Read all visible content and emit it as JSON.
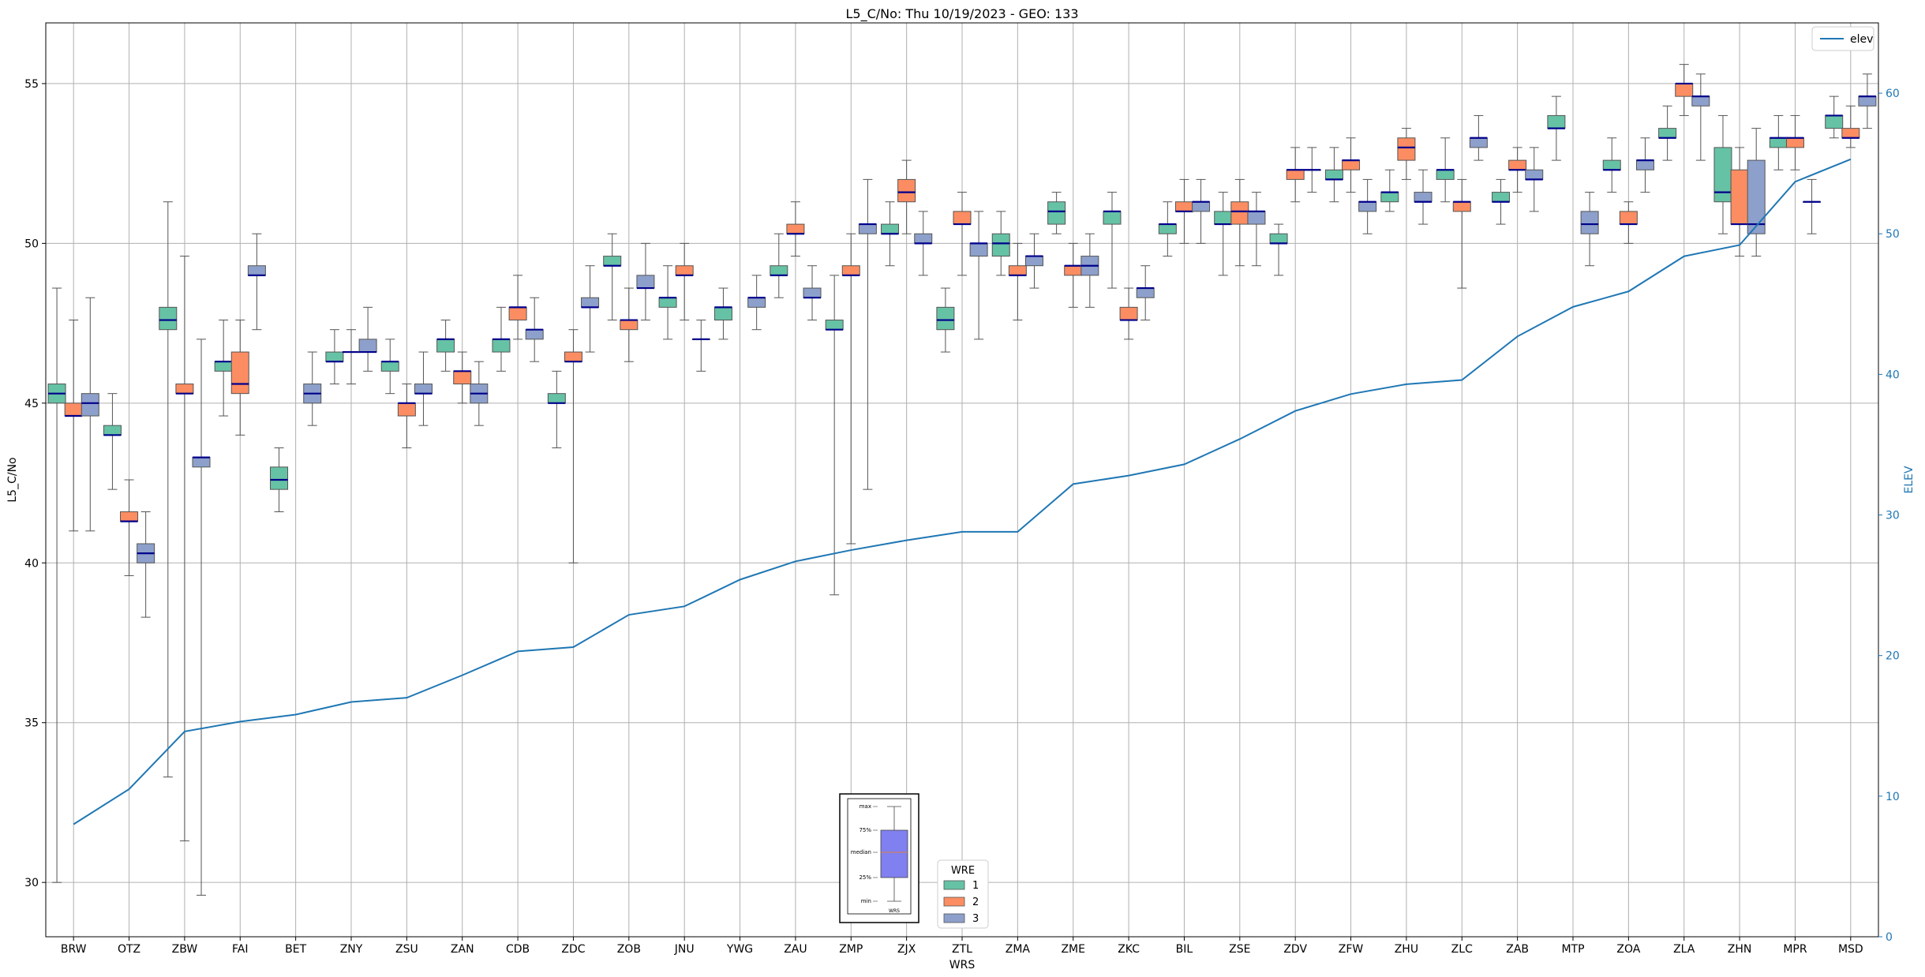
{
  "chart_data": {
    "type": "box",
    "title": "L5_C/No: Thu 10/19/2023 - GEO: 133",
    "xlabel": "WRS",
    "ylabel": "L5_C/No",
    "y2label": "ELEV",
    "ylim": [
      28.3,
      56.9
    ],
    "y2lim": [
      0,
      65
    ],
    "yticks": [
      30,
      35,
      40,
      45,
      50,
      55
    ],
    "y2ticks": [
      0,
      10,
      20,
      30,
      40,
      50,
      60
    ],
    "grid": true,
    "legend_position": "top-right",
    "categories": [
      "BRW",
      "OTZ",
      "ZBW",
      "FAI",
      "BET",
      "ZNY",
      "ZSU",
      "ZAN",
      "CDB",
      "ZDC",
      "ZOB",
      "JNU",
      "YWG",
      "ZAU",
      "ZMP",
      "ZJX",
      "ZTL",
      "ZMA",
      "ZME",
      "ZKC",
      "BIL",
      "ZSE",
      "ZDV",
      "ZFW",
      "ZHU",
      "ZLC",
      "ZAB",
      "MTP",
      "ZOA",
      "ZLA",
      "ZHN",
      "MPR",
      "MSD"
    ],
    "wre_legend": {
      "title": "WRE",
      "items": [
        {
          "label": "1",
          "color": "#66c2a5"
        },
        {
          "label": "2",
          "color": "#fc8d62"
        },
        {
          "label": "3",
          "color": "#8da0cb"
        }
      ]
    },
    "elev_legend_label": "elev",
    "elev_color": "#1f77b4",
    "median_color": "#00008b",
    "inset_key": {
      "labels": [
        "max",
        "75%",
        "median",
        "25%",
        "min"
      ],
      "xlabel": "WRS"
    },
    "boxes": [
      {
        "cat": "BRW",
        "wre": 1,
        "min": 30.0,
        "q1": 45.0,
        "med": 45.3,
        "q3": 45.6,
        "max": 48.6
      },
      {
        "cat": "BRW",
        "wre": 2,
        "min": 41.0,
        "q1": 44.6,
        "med": 44.6,
        "q3": 45.0,
        "max": 47.6
      },
      {
        "cat": "BRW",
        "wre": 3,
        "min": 41.0,
        "q1": 44.6,
        "med": 45.0,
        "q3": 45.3,
        "max": 48.3
      },
      {
        "cat": "OTZ",
        "wre": 1,
        "min": 42.3,
        "q1": 44.0,
        "med": 44.0,
        "q3": 44.3,
        "max": 45.3
      },
      {
        "cat": "OTZ",
        "wre": 2,
        "min": 39.6,
        "q1": 41.3,
        "med": 41.3,
        "q3": 41.6,
        "max": 42.6
      },
      {
        "cat": "OTZ",
        "wre": 3,
        "min": 38.3,
        "q1": 40.0,
        "med": 40.3,
        "q3": 40.6,
        "max": 41.6
      },
      {
        "cat": "ZBW",
        "wre": 1,
        "min": 33.3,
        "q1": 47.3,
        "med": 47.6,
        "q3": 48.0,
        "max": 51.3
      },
      {
        "cat": "ZBW",
        "wre": 2,
        "min": 31.3,
        "q1": 45.3,
        "med": 45.3,
        "q3": 45.6,
        "max": 49.6
      },
      {
        "cat": "ZBW",
        "wre": 3,
        "min": 29.6,
        "q1": 43.0,
        "med": 43.3,
        "q3": 43.3,
        "max": 47.0
      },
      {
        "cat": "FAI",
        "wre": 1,
        "min": 44.6,
        "q1": 46.0,
        "med": 46.3,
        "q3": 46.3,
        "max": 47.6
      },
      {
        "cat": "FAI",
        "wre": 2,
        "min": 44.0,
        "q1": 45.3,
        "med": 45.6,
        "q3": 46.6,
        "max": 47.6
      },
      {
        "cat": "FAI",
        "wre": 3,
        "min": 47.3,
        "q1": 49.0,
        "med": 49.0,
        "q3": 49.3,
        "max": 50.3
      },
      {
        "cat": "BET",
        "wre": 1,
        "min": 41.6,
        "q1": 42.3,
        "med": 42.6,
        "q3": 43.0,
        "max": 43.6
      },
      {
        "cat": "BET",
        "wre": 3,
        "min": 44.3,
        "q1": 45.0,
        "med": 45.3,
        "q3": 45.6,
        "max": 46.6
      },
      {
        "cat": "ZNY",
        "wre": 1,
        "min": 45.6,
        "q1": 46.3,
        "med": 46.3,
        "q3": 46.6,
        "max": 47.3
      },
      {
        "cat": "ZNY",
        "wre": 2,
        "min": 45.6,
        "q1": 46.6,
        "med": 46.6,
        "q3": 46.6,
        "max": 47.3
      },
      {
        "cat": "ZNY",
        "wre": 3,
        "min": 46.0,
        "q1": 46.6,
        "med": 46.6,
        "q3": 47.0,
        "max": 48.0
      },
      {
        "cat": "ZSU",
        "wre": 1,
        "min": 45.3,
        "q1": 46.0,
        "med": 46.3,
        "q3": 46.3,
        "max": 47.0
      },
      {
        "cat": "ZSU",
        "wre": 2,
        "min": 43.6,
        "q1": 44.6,
        "med": 45.0,
        "q3": 45.0,
        "max": 45.6
      },
      {
        "cat": "ZSU",
        "wre": 3,
        "min": 44.3,
        "q1": 45.3,
        "med": 45.3,
        "q3": 45.6,
        "max": 46.6
      },
      {
        "cat": "ZAN",
        "wre": 1,
        "min": 46.0,
        "q1": 46.6,
        "med": 47.0,
        "q3": 47.0,
        "max": 47.6
      },
      {
        "cat": "ZAN",
        "wre": 2,
        "min": 45.0,
        "q1": 45.6,
        "med": 46.0,
        "q3": 46.0,
        "max": 46.6
      },
      {
        "cat": "ZAN",
        "wre": 3,
        "min": 44.3,
        "q1": 45.0,
        "med": 45.3,
        "q3": 45.6,
        "max": 46.3
      },
      {
        "cat": "CDB",
        "wre": 1,
        "min": 46.0,
        "q1": 46.6,
        "med": 47.0,
        "q3": 47.0,
        "max": 48.0
      },
      {
        "cat": "CDB",
        "wre": 2,
        "min": 47.0,
        "q1": 47.6,
        "med": 48.0,
        "q3": 48.0,
        "max": 49.0
      },
      {
        "cat": "CDB",
        "wre": 3,
        "min": 46.3,
        "q1": 47.0,
        "med": 47.3,
        "q3": 47.3,
        "max": 48.3
      },
      {
        "cat": "ZDC",
        "wre": 1,
        "min": 43.6,
        "q1": 45.0,
        "med": 45.0,
        "q3": 45.3,
        "max": 46.0
      },
      {
        "cat": "ZDC",
        "wre": 2,
        "min": 40.0,
        "q1": 46.3,
        "med": 46.3,
        "q3": 46.6,
        "max": 47.3
      },
      {
        "cat": "ZDC",
        "wre": 3,
        "min": 46.6,
        "q1": 48.0,
        "med": 48.0,
        "q3": 48.3,
        "max": 49.3
      },
      {
        "cat": "ZOB",
        "wre": 1,
        "min": 47.6,
        "q1": 49.3,
        "med": 49.3,
        "q3": 49.6,
        "max": 50.3
      },
      {
        "cat": "ZOB",
        "wre": 2,
        "min": 46.3,
        "q1": 47.3,
        "med": 47.6,
        "q3": 47.6,
        "max": 48.6
      },
      {
        "cat": "ZOB",
        "wre": 3,
        "min": 47.6,
        "q1": 48.6,
        "med": 48.6,
        "q3": 49.0,
        "max": 50.0
      },
      {
        "cat": "JNU",
        "wre": 1,
        "min": 47.0,
        "q1": 48.0,
        "med": 48.3,
        "q3": 48.3,
        "max": 49.3
      },
      {
        "cat": "JNU",
        "wre": 2,
        "min": 47.6,
        "q1": 49.0,
        "med": 49.0,
        "q3": 49.3,
        "max": 50.0
      },
      {
        "cat": "JNU",
        "wre": 3,
        "min": 46.0,
        "q1": 47.0,
        "med": 47.0,
        "q3": 47.0,
        "max": 47.6
      },
      {
        "cat": "YWG",
        "wre": 1,
        "min": 47.0,
        "q1": 47.6,
        "med": 48.0,
        "q3": 48.0,
        "max": 48.6
      },
      {
        "cat": "YWG",
        "wre": 3,
        "min": 47.3,
        "q1": 48.0,
        "med": 48.3,
        "q3": 48.3,
        "max": 49.0
      },
      {
        "cat": "ZAU",
        "wre": 1,
        "min": 48.3,
        "q1": 49.0,
        "med": 49.0,
        "q3": 49.3,
        "max": 50.3
      },
      {
        "cat": "ZAU",
        "wre": 2,
        "min": 49.6,
        "q1": 50.3,
        "med": 50.3,
        "q3": 50.6,
        "max": 51.3
      },
      {
        "cat": "ZAU",
        "wre": 3,
        "min": 47.6,
        "q1": 48.3,
        "med": 48.3,
        "q3": 48.6,
        "max": 49.3
      },
      {
        "cat": "ZMP",
        "wre": 1,
        "min": 39.0,
        "q1": 47.3,
        "med": 47.3,
        "q3": 47.6,
        "max": 49.0
      },
      {
        "cat": "ZMP",
        "wre": 2,
        "min": 40.6,
        "q1": 49.0,
        "med": 49.0,
        "q3": 49.3,
        "max": 50.3
      },
      {
        "cat": "ZMP",
        "wre": 3,
        "min": 42.3,
        "q1": 50.3,
        "med": 50.6,
        "q3": 50.6,
        "max": 52.0
      },
      {
        "cat": "ZJX",
        "wre": 1,
        "min": 49.3,
        "q1": 50.3,
        "med": 50.3,
        "q3": 50.6,
        "max": 51.3
      },
      {
        "cat": "ZJX",
        "wre": 2,
        "min": 50.3,
        "q1": 51.3,
        "med": 51.6,
        "q3": 52.0,
        "max": 52.6
      },
      {
        "cat": "ZJX",
        "wre": 3,
        "min": 49.0,
        "q1": 50.0,
        "med": 50.0,
        "q3": 50.3,
        "max": 51.0
      },
      {
        "cat": "ZTL",
        "wre": 1,
        "min": 46.6,
        "q1": 47.3,
        "med": 47.6,
        "q3": 48.0,
        "max": 48.6
      },
      {
        "cat": "ZTL",
        "wre": 2,
        "min": 49.0,
        "q1": 50.6,
        "med": 50.6,
        "q3": 51.0,
        "max": 51.6
      },
      {
        "cat": "ZTL",
        "wre": 3,
        "min": 47.0,
        "q1": 49.6,
        "med": 50.0,
        "q3": 50.0,
        "max": 51.0
      },
      {
        "cat": "ZMA",
        "wre": 1,
        "min": 49.0,
        "q1": 49.6,
        "med": 50.0,
        "q3": 50.3,
        "max": 51.0
      },
      {
        "cat": "ZMA",
        "wre": 2,
        "min": 47.6,
        "q1": 49.0,
        "med": 49.0,
        "q3": 49.3,
        "max": 50.0
      },
      {
        "cat": "ZMA",
        "wre": 3,
        "min": 48.6,
        "q1": 49.3,
        "med": 49.6,
        "q3": 49.6,
        "max": 50.3
      },
      {
        "cat": "ZME",
        "wre": 1,
        "min": 50.3,
        "q1": 50.6,
        "med": 51.0,
        "q3": 51.3,
        "max": 51.6
      },
      {
        "cat": "ZME",
        "wre": 2,
        "min": 48.0,
        "q1": 49.0,
        "med": 49.3,
        "q3": 49.3,
        "max": 50.0
      },
      {
        "cat": "ZME",
        "wre": 3,
        "min": 48.0,
        "q1": 49.0,
        "med": 49.3,
        "q3": 49.6,
        "max": 50.3
      },
      {
        "cat": "ZKC",
        "wre": 1,
        "min": 48.6,
        "q1": 50.6,
        "med": 51.0,
        "q3": 51.0,
        "max": 51.6
      },
      {
        "cat": "ZKC",
        "wre": 2,
        "min": 47.0,
        "q1": 47.6,
        "med": 47.6,
        "q3": 48.0,
        "max": 48.6
      },
      {
        "cat": "ZKC",
        "wre": 3,
        "min": 47.6,
        "q1": 48.3,
        "med": 48.6,
        "q3": 48.6,
        "max": 49.3
      },
      {
        "cat": "BIL",
        "wre": 1,
        "min": 49.6,
        "q1": 50.3,
        "med": 50.6,
        "q3": 50.6,
        "max": 51.3
      },
      {
        "cat": "BIL",
        "wre": 2,
        "min": 50.0,
        "q1": 51.0,
        "med": 51.0,
        "q3": 51.3,
        "max": 52.0
      },
      {
        "cat": "BIL",
        "wre": 3,
        "min": 50.0,
        "q1": 51.0,
        "med": 51.3,
        "q3": 51.3,
        "max": 52.0
      },
      {
        "cat": "ZSE",
        "wre": 1,
        "min": 49.0,
        "q1": 50.6,
        "med": 50.6,
        "q3": 51.0,
        "max": 51.6
      },
      {
        "cat": "ZSE",
        "wre": 2,
        "min": 49.3,
        "q1": 50.6,
        "med": 51.0,
        "q3": 51.3,
        "max": 52.0
      },
      {
        "cat": "ZSE",
        "wre": 3,
        "min": 49.3,
        "q1": 50.6,
        "med": 51.0,
        "q3": 51.0,
        "max": 51.6
      },
      {
        "cat": "ZDV",
        "wre": 1,
        "min": 49.0,
        "q1": 50.0,
        "med": 50.0,
        "q3": 50.3,
        "max": 50.6
      },
      {
        "cat": "ZDV",
        "wre": 2,
        "min": 51.3,
        "q1": 52.0,
        "med": 52.3,
        "q3": 52.3,
        "max": 53.0
      },
      {
        "cat": "ZDV",
        "wre": 3,
        "min": 51.6,
        "q1": 52.3,
        "med": 52.3,
        "q3": 52.3,
        "max": 53.0
      },
      {
        "cat": "ZFW",
        "wre": 1,
        "min": 51.3,
        "q1": 52.0,
        "med": 52.0,
        "q3": 52.3,
        "max": 53.0
      },
      {
        "cat": "ZFW",
        "wre": 2,
        "min": 51.6,
        "q1": 52.3,
        "med": 52.6,
        "q3": 52.6,
        "max": 53.3
      },
      {
        "cat": "ZFW",
        "wre": 3,
        "min": 50.3,
        "q1": 51.0,
        "med": 51.3,
        "q3": 51.3,
        "max": 52.0
      },
      {
        "cat": "ZHU",
        "wre": 1,
        "min": 51.0,
        "q1": 51.3,
        "med": 51.6,
        "q3": 51.6,
        "max": 52.3
      },
      {
        "cat": "ZHU",
        "wre": 2,
        "min": 52.0,
        "q1": 52.6,
        "med": 53.0,
        "q3": 53.3,
        "max": 53.6
      },
      {
        "cat": "ZHU",
        "wre": 3,
        "min": 50.6,
        "q1": 51.3,
        "med": 51.3,
        "q3": 51.6,
        "max": 52.3
      },
      {
        "cat": "ZLC",
        "wre": 1,
        "min": 51.3,
        "q1": 52.0,
        "med": 52.3,
        "q3": 52.3,
        "max": 53.3
      },
      {
        "cat": "ZLC",
        "wre": 2,
        "min": 48.6,
        "q1": 51.0,
        "med": 51.3,
        "q3": 51.3,
        "max": 52.0
      },
      {
        "cat": "ZLC",
        "wre": 3,
        "min": 52.6,
        "q1": 53.0,
        "med": 53.3,
        "q3": 53.3,
        "max": 54.0
      },
      {
        "cat": "ZAB",
        "wre": 1,
        "min": 50.6,
        "q1": 51.3,
        "med": 51.3,
        "q3": 51.6,
        "max": 52.0
      },
      {
        "cat": "ZAB",
        "wre": 2,
        "min": 51.6,
        "q1": 52.3,
        "med": 52.3,
        "q3": 52.6,
        "max": 53.0
      },
      {
        "cat": "ZAB",
        "wre": 3,
        "min": 51.0,
        "q1": 52.0,
        "med": 52.0,
        "q3": 52.3,
        "max": 53.0
      },
      {
        "cat": "MTP",
        "wre": 1,
        "min": 52.6,
        "q1": 53.6,
        "med": 53.6,
        "q3": 54.0,
        "max": 54.6
      },
      {
        "cat": "MTP",
        "wre": 3,
        "min": 49.3,
        "q1": 50.3,
        "med": 50.6,
        "q3": 51.0,
        "max": 51.6
      },
      {
        "cat": "ZOA",
        "wre": 1,
        "min": 51.6,
        "q1": 52.3,
        "med": 52.3,
        "q3": 52.6,
        "max": 53.3
      },
      {
        "cat": "ZOA",
        "wre": 2,
        "min": 50.0,
        "q1": 50.6,
        "med": 50.6,
        "q3": 51.0,
        "max": 51.3
      },
      {
        "cat": "ZOA",
        "wre": 3,
        "min": 51.6,
        "q1": 52.3,
        "med": 52.6,
        "q3": 52.6,
        "max": 53.3
      },
      {
        "cat": "ZLA",
        "wre": 1,
        "min": 52.6,
        "q1": 53.3,
        "med": 53.3,
        "q3": 53.6,
        "max": 54.3
      },
      {
        "cat": "ZLA",
        "wre": 2,
        "min": 54.0,
        "q1": 54.6,
        "med": 55.0,
        "q3": 55.0,
        "max": 55.6
      },
      {
        "cat": "ZLA",
        "wre": 3,
        "min": 52.6,
        "q1": 54.3,
        "med": 54.6,
        "q3": 54.6,
        "max": 55.3
      },
      {
        "cat": "ZHN",
        "wre": 1,
        "min": 50.3,
        "q1": 51.3,
        "med": 51.6,
        "q3": 53.0,
        "max": 54.0
      },
      {
        "cat": "ZHN",
        "wre": 2,
        "min": 49.6,
        "q1": 50.6,
        "med": 50.6,
        "q3": 52.3,
        "max": 53.0
      },
      {
        "cat": "ZHN",
        "wre": 3,
        "min": 49.6,
        "q1": 50.3,
        "med": 50.6,
        "q3": 52.6,
        "max": 53.6
      },
      {
        "cat": "MPR",
        "wre": 1,
        "min": 52.3,
        "q1": 53.0,
        "med": 53.3,
        "q3": 53.3,
        "max": 54.0
      },
      {
        "cat": "MPR",
        "wre": 2,
        "min": 52.3,
        "q1": 53.0,
        "med": 53.3,
        "q3": 53.3,
        "max": 54.0
      },
      {
        "cat": "MPR",
        "wre": 3,
        "min": 50.3,
        "q1": 51.3,
        "med": 51.3,
        "q3": 51.3,
        "max": 52.0
      },
      {
        "cat": "MSD",
        "wre": 1,
        "min": 53.3,
        "q1": 53.6,
        "med": 54.0,
        "q3": 54.0,
        "max": 54.6
      },
      {
        "cat": "MSD",
        "wre": 2,
        "min": 53.0,
        "q1": 53.3,
        "med": 53.3,
        "q3": 53.6,
        "max": 54.3
      },
      {
        "cat": "MSD",
        "wre": 3,
        "min": 53.6,
        "q1": 54.3,
        "med": 54.6,
        "q3": 54.6,
        "max": 55.3
      }
    ],
    "elev_series": {
      "name": "elev",
      "values": [
        8.0,
        10.5,
        14.6,
        15.3,
        15.8,
        16.7,
        17.0,
        18.6,
        20.3,
        20.6,
        22.9,
        23.5,
        25.4,
        26.7,
        27.5,
        28.2,
        28.8,
        28.8,
        32.2,
        32.8,
        33.6,
        35.4,
        37.4,
        38.6,
        39.3,
        39.6,
        42.7,
        44.8,
        45.9,
        48.4,
        49.2,
        53.7,
        55.3
      ]
    }
  }
}
